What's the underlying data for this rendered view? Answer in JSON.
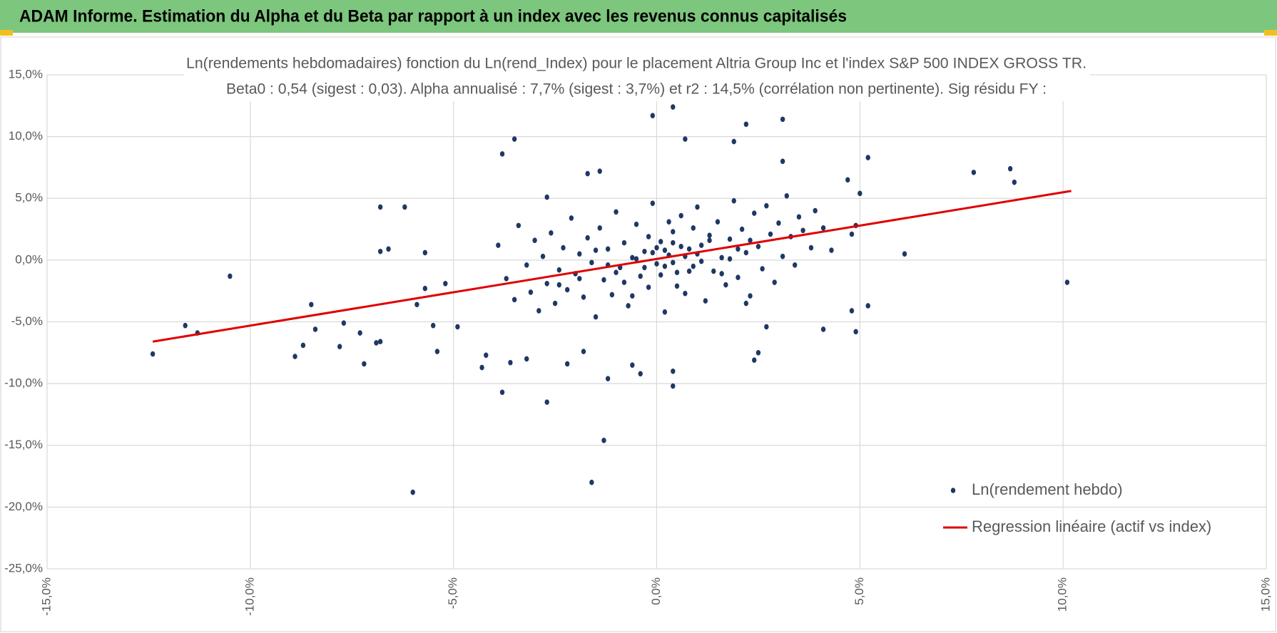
{
  "header": {
    "title": "ADAM Informe. Estimation du Alpha et du Beta par rapport à un index avec les revenus connus capitalisés"
  },
  "chart_data": {
    "type": "scatter",
    "title": "Ln(rendements hebdomadaires) fonction du Ln(rend_Index) pour le placement Altria Group Inc et l'index S&P 500 INDEX GROSS TR.",
    "subtitle": "Beta0 : 0,54 (sigest : 0,03).  Alpha annualisé : 7,7% (sigest : 3,7%) et r2 : 14,5% (corrélation non pertinente). Sig résidu FY :",
    "xlim": [
      -15,
      15
    ],
    "ylim": [
      -25,
      15
    ],
    "xticks": [
      {
        "value": -15,
        "label": "-15,0%"
      },
      {
        "value": -10,
        "label": "-10,0%"
      },
      {
        "value": -5,
        "label": "-5,0%"
      },
      {
        "value": 0,
        "label": "0,0%"
      },
      {
        "value": 5,
        "label": "5,0%"
      },
      {
        "value": 10,
        "label": "10,0%"
      },
      {
        "value": 15,
        "label": "15,0%"
      }
    ],
    "yticks": [
      {
        "value": 15,
        "label": "15,0%"
      },
      {
        "value": 10,
        "label": "10,0%"
      },
      {
        "value": 5,
        "label": "5,0%"
      },
      {
        "value": 0,
        "label": "0,0%"
      },
      {
        "value": -5,
        "label": "-5,0%"
      },
      {
        "value": -10,
        "label": "-10,0%"
      },
      {
        "value": -15,
        "label": "-15,0%"
      },
      {
        "value": -20,
        "label": "-20,0%"
      },
      {
        "value": -25,
        "label": "-25,0%"
      }
    ],
    "grid": true,
    "legend": "lower right",
    "series": [
      {
        "name": "Ln(rendement hebdo)",
        "type": "scatter",
        "color": "#1f3864",
        "x": [
          -12.4,
          -11.6,
          -11.3,
          -10.5,
          -8.9,
          -8.7,
          -8.5,
          -8.4,
          -7.8,
          -7.7,
          -7.3,
          -7.2,
          -6.9,
          -6.8,
          -6.8,
          -6.8,
          -6.6,
          -6.2,
          -6.0,
          -5.9,
          -5.7,
          -5.5,
          -5.4,
          -5.7,
          -5.2,
          -4.9,
          -3.8,
          -3.8,
          -3.5,
          -3.6,
          -2.7,
          -3.2,
          -2.7,
          -1.7,
          -1.4,
          -1.6,
          -1.3,
          -1.2,
          -0.1,
          0.4,
          0.4,
          0.7,
          1.9,
          2.2,
          3.1,
          3.1,
          6.1,
          5.2,
          5.2,
          4.9,
          4.8,
          4.1,
          7.8,
          8.7,
          8.8,
          10.1,
          4.7,
          5.0,
          4.9,
          4.8,
          2.4,
          2.5,
          2.7,
          2.2,
          0.4,
          -0.4,
          -0.6,
          -2.2,
          -1.8,
          -4.3,
          -4.2,
          -3.9,
          -3.7,
          -3.5,
          -3.4,
          -3.2,
          -3.1,
          -3.0,
          -2.9,
          -2.8,
          -2.7,
          -2.6,
          -2.5,
          -2.4,
          -2.3,
          -2.2,
          -2.1,
          -2.0,
          -1.9,
          -1.8,
          -1.7,
          -1.6,
          -1.5,
          -1.4,
          -1.3,
          -1.2,
          -1.1,
          -1.0,
          -0.9,
          -0.8,
          -0.7,
          -0.6,
          -0.5,
          -0.4,
          -0.3,
          -0.2,
          -0.1,
          0.0,
          0.1,
          0.2,
          0.3,
          0.4,
          0.5,
          0.6,
          0.7,
          0.8,
          0.9,
          1.0,
          1.1,
          1.2,
          1.3,
          1.4,
          1.5,
          1.6,
          1.7,
          1.8,
          1.9,
          2.0,
          2.1,
          2.2,
          2.3,
          2.4,
          2.5,
          2.6,
          2.7,
          2.8,
          2.9,
          3.0,
          3.1,
          3.2,
          3.3,
          3.4,
          3.5,
          3.6,
          3.8,
          3.9,
          4.1,
          4.3,
          -0.5,
          -0.3,
          0.2,
          0.4,
          0.6,
          0.8,
          1.0,
          -0.8,
          -1.2,
          1.3,
          0.1,
          -0.2,
          0.5,
          0.9,
          1.6,
          -1.5,
          -2.4,
          2.0,
          0.3,
          -0.6,
          1.1,
          0.7,
          -0.1,
          0.0,
          0.2,
          1.8,
          2.3,
          -1.0,
          -1.9,
          0.4
        ],
        "values": [
          -7.6,
          -5.3,
          -5.9,
          -1.3,
          -7.8,
          -6.9,
          -3.6,
          -5.6,
          -7.0,
          -5.1,
          -5.9,
          -8.4,
          -6.7,
          -6.6,
          4.3,
          0.7,
          0.9,
          4.3,
          -18.8,
          -3.6,
          0.6,
          -5.3,
          -7.4,
          -2.3,
          -1.9,
          -5.4,
          -10.7,
          8.6,
          9.8,
          -8.3,
          -11.5,
          -8.0,
          5.1,
          7.0,
          7.2,
          -18.0,
          -14.6,
          -9.6,
          11.7,
          12.4,
          -10.2,
          9.8,
          9.6,
          11.0,
          11.4,
          8.0,
          0.5,
          8.3,
          -3.7,
          -5.8,
          -4.1,
          -5.6,
          7.1,
          7.4,
          6.3,
          -1.8,
          6.5,
          5.4,
          2.8,
          2.1,
          -8.1,
          -7.5,
          -5.4,
          -3.5,
          -9.0,
          -9.2,
          -8.5,
          -8.4,
          -7.4,
          -8.7,
          -7.7,
          1.2,
          -1.5,
          -3.2,
          2.8,
          -0.4,
          -2.6,
          1.6,
          -4.1,
          0.3,
          -1.9,
          2.2,
          -3.5,
          -0.8,
          1.0,
          -2.4,
          3.4,
          -1.1,
          0.5,
          -3.0,
          1.8,
          -0.2,
          -4.6,
          2.6,
          -1.6,
          0.9,
          -2.8,
          3.9,
          -0.6,
          1.4,
          -3.7,
          0.2,
          2.9,
          -1.3,
          0.7,
          -2.2,
          4.6,
          -0.3,
          1.5,
          -4.2,
          0.4,
          2.3,
          -1.0,
          3.6,
          -2.7,
          0.9,
          -0.5,
          4.3,
          1.2,
          -3.3,
          2.0,
          -0.9,
          3.1,
          0.2,
          -2.0,
          1.7,
          4.8,
          -1.4,
          2.5,
          0.6,
          -2.9,
          3.8,
          1.1,
          -0.7,
          4.4,
          2.1,
          -1.8,
          3.0,
          0.3,
          5.2,
          1.9,
          -0.4,
          3.5,
          2.4,
          1.0,
          4.0,
          2.6,
          0.8,
          0.1,
          -0.6,
          0.8,
          -0.2,
          1.1,
          -0.9,
          0.5,
          -1.8,
          -0.4,
          1.6,
          -1.2,
          1.9,
          -2.1,
          2.6,
          -1.1,
          0.8,
          -2.0,
          0.9,
          3.1,
          -2.9,
          -0.1,
          0.3,
          0.6,
          1.0,
          -0.5,
          0.1,
          1.6,
          -1.0,
          -1.5,
          1.4
        ]
      },
      {
        "name": "Regression linéaire (actif vs index)",
        "type": "line",
        "color": "#e00000",
        "x": [
          -12.4,
          10.2
        ],
        "values": [
          -6.6,
          5.6
        ]
      }
    ]
  }
}
